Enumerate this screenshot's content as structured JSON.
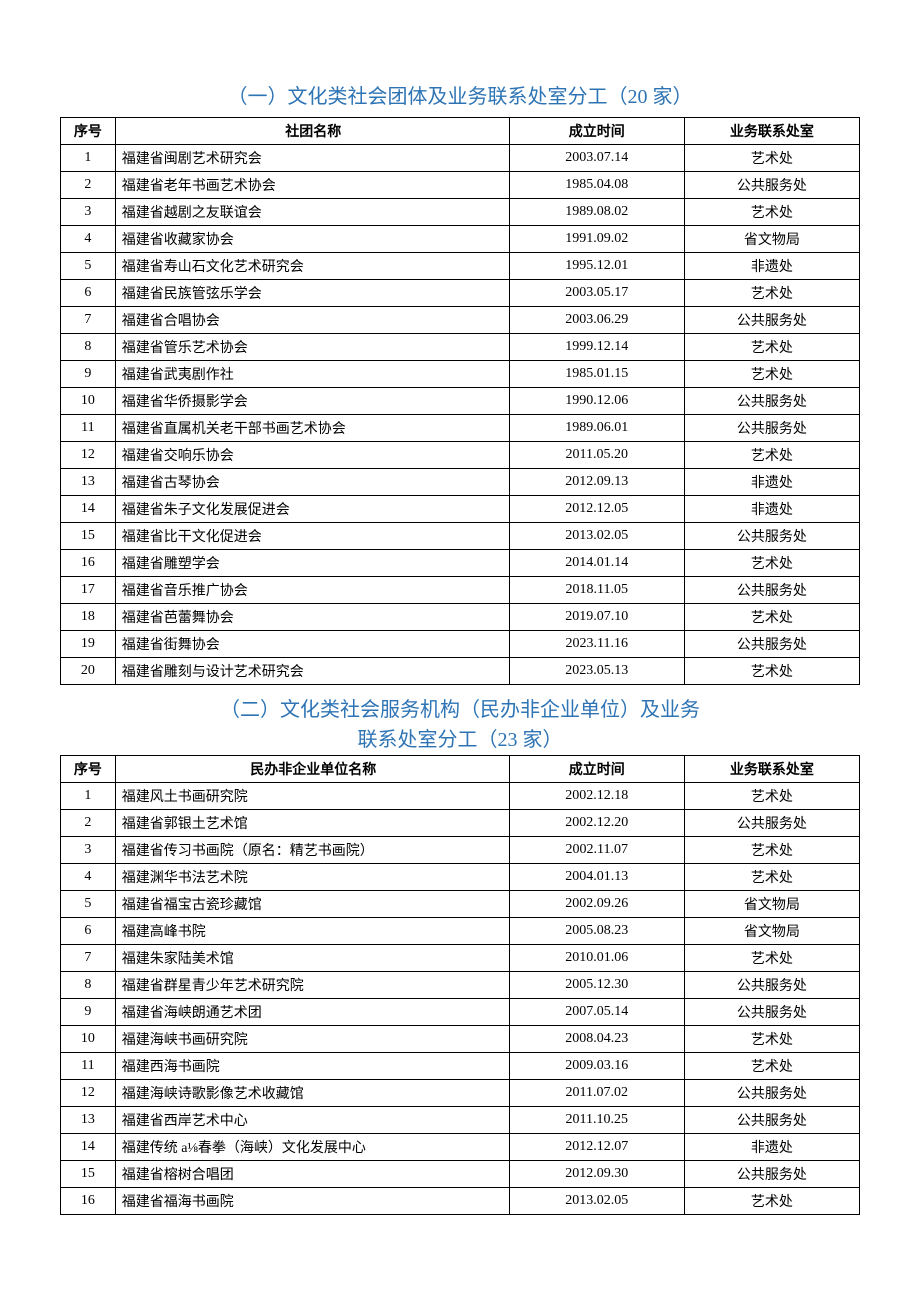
{
  "section1": {
    "title": "（一）文化类社会团体及业务联系处室分工（20 家）",
    "headers": {
      "seq": "序号",
      "name": "社团名称",
      "date": "成立时间",
      "dept": "业务联系处室"
    },
    "rows": [
      {
        "seq": "1",
        "name": "福建省闽剧艺术研究会",
        "date": "2003.07.14",
        "dept": "艺术处"
      },
      {
        "seq": "2",
        "name": "福建省老年书画艺术协会",
        "date": "1985.04.08",
        "dept": "公共服务处"
      },
      {
        "seq": "3",
        "name": "福建省越剧之友联谊会",
        "date": "1989.08.02",
        "dept": "艺术处"
      },
      {
        "seq": "4",
        "name": "福建省收藏家协会",
        "date": "1991.09.02",
        "dept": "省文物局"
      },
      {
        "seq": "5",
        "name": "福建省寿山石文化艺术研究会",
        "date": "1995.12.01",
        "dept": "非遗处"
      },
      {
        "seq": "6",
        "name": "福建省民族管弦乐学会",
        "date": "2003.05.17",
        "dept": "艺术处"
      },
      {
        "seq": "7",
        "name": "福建省合唱协会",
        "date": "2003.06.29",
        "dept": "公共服务处"
      },
      {
        "seq": "8",
        "name": "福建省管乐艺术协会",
        "date": "1999.12.14",
        "dept": "艺术处"
      },
      {
        "seq": "9",
        "name": "福建省武夷剧作社",
        "date": "1985.01.15",
        "dept": "艺术处"
      },
      {
        "seq": "10",
        "name": "福建省华侨摄影学会",
        "date": "1990.12.06",
        "dept": "公共服务处"
      },
      {
        "seq": "11",
        "name": "福建省直属机关老干部书画艺术协会",
        "date": "1989.06.01",
        "dept": "公共服务处"
      },
      {
        "seq": "12",
        "name": "福建省交响乐协会",
        "date": "2011.05.20",
        "dept": "艺术处"
      },
      {
        "seq": "13",
        "name": "福建省古琴协会",
        "date": "2012.09.13",
        "dept": "非遗处"
      },
      {
        "seq": "14",
        "name": "福建省朱子文化发展促进会",
        "date": "2012.12.05",
        "dept": "非遗处"
      },
      {
        "seq": "15",
        "name": "福建省比干文化促进会",
        "date": "2013.02.05",
        "dept": "公共服务处"
      },
      {
        "seq": "16",
        "name": "福建省雕塑学会",
        "date": "2014.01.14",
        "dept": "艺术处"
      },
      {
        "seq": "17",
        "name": "福建省音乐推广协会",
        "date": "2018.11.05",
        "dept": "公共服务处"
      },
      {
        "seq": "18",
        "name": "福建省芭蕾舞协会",
        "date": "2019.07.10",
        "dept": "艺术处"
      },
      {
        "seq": "19",
        "name": "福建省街舞协会",
        "date": "2023.11.16",
        "dept": "公共服务处"
      },
      {
        "seq": "20",
        "name": "福建省雕刻与设计艺术研究会",
        "date": "2023.05.13",
        "dept": "艺术处"
      }
    ]
  },
  "section2": {
    "title_line1": "（二）文化类社会服务机构（民办非企业单位）及业务",
    "title_line2": "联系处室分工（23 家）",
    "headers": {
      "seq": "序号",
      "name": "民办非企业单位名称",
      "date": "成立时间",
      "dept": "业务联系处室"
    },
    "rows": [
      {
        "seq": "1",
        "name": "福建风土书画研究院",
        "date": "2002.12.18",
        "dept": "艺术处"
      },
      {
        "seq": "2",
        "name": "福建省郭银土艺术馆",
        "date": "2002.12.20",
        "dept": "公共服务处"
      },
      {
        "seq": "3",
        "name": "福建省传习书画院（原名：精艺书画院）",
        "date": "2002.11.07",
        "dept": "艺术处"
      },
      {
        "seq": "4",
        "name": "福建渊华书法艺术院",
        "date": "2004.01.13",
        "dept": "艺术处"
      },
      {
        "seq": "5",
        "name": "福建省福宝古瓷珍藏馆",
        "date": "2002.09.26",
        "dept": "省文物局"
      },
      {
        "seq": "6",
        "name": "福建高峰书院",
        "date": "2005.08.23",
        "dept": "省文物局"
      },
      {
        "seq": "7",
        "name": "福建朱家陆美术馆",
        "date": "2010.01.06",
        "dept": "艺术处"
      },
      {
        "seq": "8",
        "name": "福建省群星青少年艺术研究院",
        "date": "2005.12.30",
        "dept": "公共服务处"
      },
      {
        "seq": "9",
        "name": "福建省海峡朗通艺术团",
        "date": "2007.05.14",
        "dept": "公共服务处"
      },
      {
        "seq": "10",
        "name": "福建海峡书画研究院",
        "date": "2008.04.23",
        "dept": "艺术处"
      },
      {
        "seq": "11",
        "name": "福建西海书画院",
        "date": "2009.03.16",
        "dept": "艺术处"
      },
      {
        "seq": "12",
        "name": "福建海峡诗歌影像艺术收藏馆",
        "date": "2011.07.02",
        "dept": "公共服务处"
      },
      {
        "seq": "13",
        "name": "福建省西岸艺术中心",
        "date": "2011.10.25",
        "dept": "公共服务处"
      },
      {
        "seq": "14",
        "name": "福建传统 a⅛春拳（海峡）文化发展中心",
        "date": "2012.12.07",
        "dept": "非遗处"
      },
      {
        "seq": "15",
        "name": "福建省榕树合唱团",
        "date": "2012.09.30",
        "dept": "公共服务处"
      },
      {
        "seq": "16",
        "name": "福建省福海书画院",
        "date": "2013.02.05",
        "dept": "艺术处"
      }
    ]
  },
  "styling": {
    "title_color": "#2e74b5",
    "border_color": "#000000",
    "text_color": "#000000",
    "background_color": "#ffffff",
    "title_fontsize": 20,
    "cell_fontsize": 14,
    "col_widths": {
      "seq": 50,
      "name": 360,
      "date": 160,
      "dept": 160
    }
  }
}
